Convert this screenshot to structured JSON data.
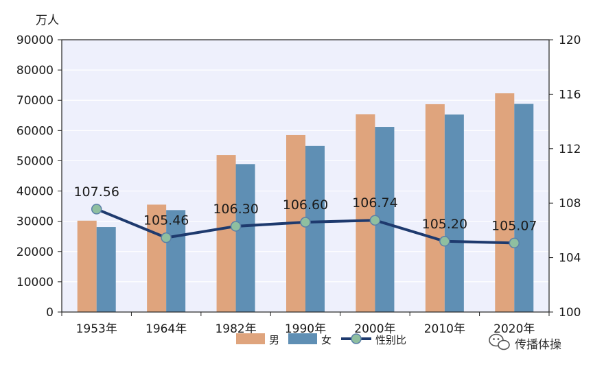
{
  "chart_data": {
    "type": "bar",
    "categories": [
      "1953年",
      "1964年",
      "1982年",
      "1990年",
      "2000年",
      "2010年",
      "2020年"
    ],
    "series": [
      {
        "name": "男",
        "type": "bar",
        "axis": "left",
        "color": "#DFA47D",
        "values": [
          30200,
          35500,
          51900,
          58500,
          65400,
          68700,
          72300
        ]
      },
      {
        "name": "女",
        "type": "bar",
        "axis": "left",
        "color": "#5F8FB4",
        "values": [
          28100,
          33700,
          48900,
          54900,
          61200,
          65300,
          68800
        ]
      },
      {
        "name": "性别比",
        "type": "line",
        "axis": "right",
        "color": "#1E3A6E",
        "marker_color": "#8FBFA0",
        "values": [
          107.56,
          105.46,
          106.3,
          106.6,
          106.74,
          105.2,
          105.07
        ],
        "labels": [
          "107.56",
          "105.46",
          "106.30",
          "106.60",
          "106.74",
          "105.20",
          "105.07"
        ]
      }
    ],
    "y_left": {
      "unit": "万人",
      "min": 0,
      "max": 90000,
      "ticks": [
        "0",
        "10000",
        "20000",
        "30000",
        "40000",
        "50000",
        "60000",
        "70000",
        "80000",
        "90000"
      ]
    },
    "y_right": {
      "min": 100,
      "max": 120,
      "ticks": [
        "100",
        "104",
        "108",
        "112",
        "116",
        "120"
      ]
    },
    "plot_background": "#EEF0FC",
    "legend": {
      "position": "bottom",
      "items": [
        "男",
        "女",
        "性别比"
      ]
    },
    "grid": true
  },
  "watermark": {
    "text": "传播体操",
    "icon": "wechat-icon"
  }
}
